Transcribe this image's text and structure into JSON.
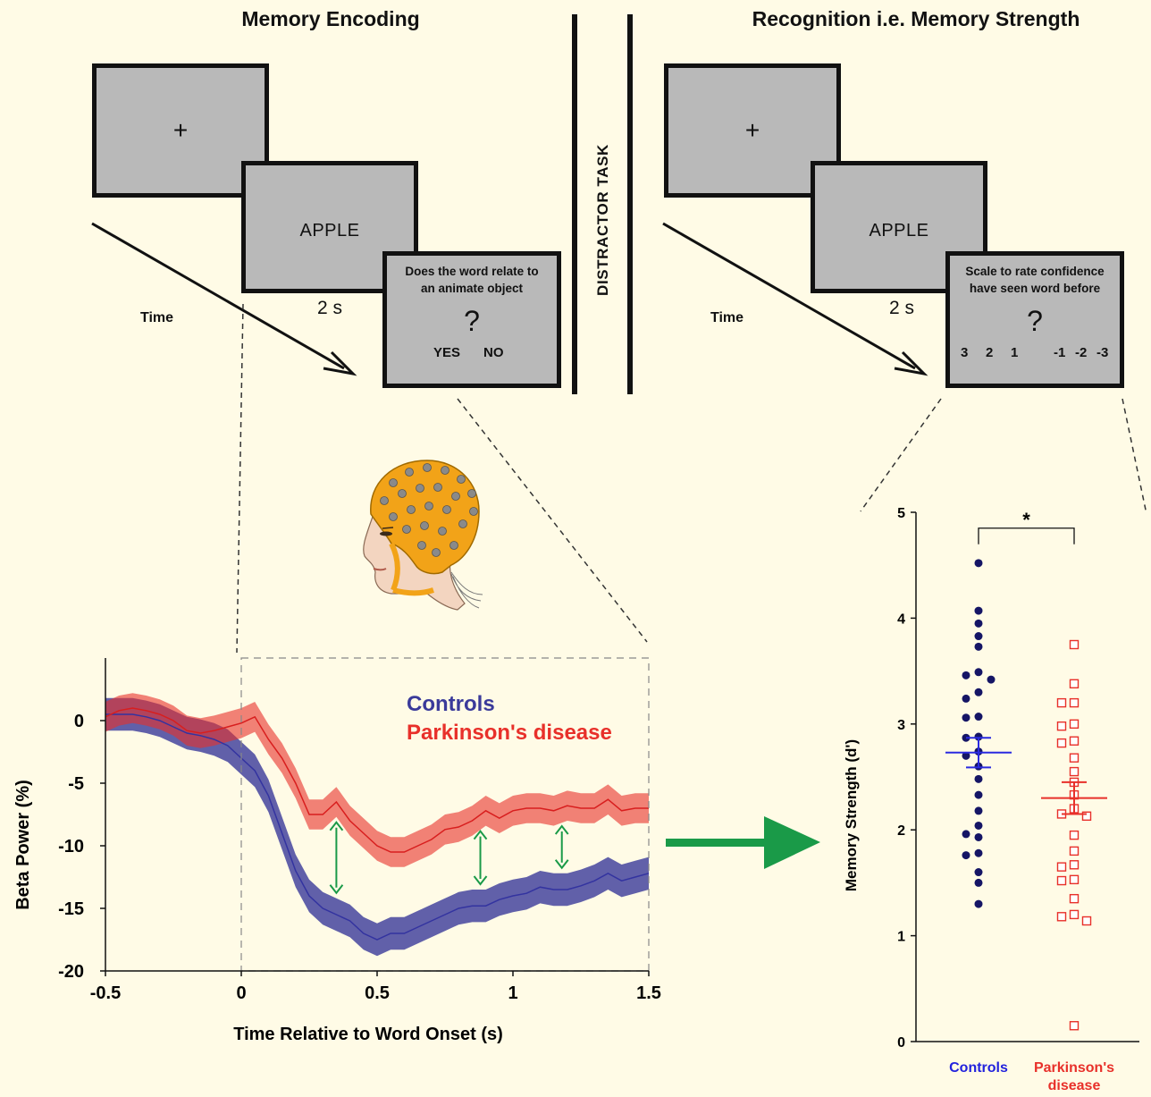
{
  "encoding": {
    "title": "Memory Encoding",
    "fixation": "+",
    "word": "APPLE",
    "duration": "2 s",
    "time_label": "Time",
    "question_line1": "Does the word relate to",
    "question_line2": "an animate object",
    "question_mark": "?",
    "response_yes": "YES",
    "response_no": "NO"
  },
  "distractor": {
    "label": "DISTRACTOR TASK"
  },
  "recognition": {
    "title": "Recognition i.e. Memory Strength",
    "fixation": "+",
    "word": "APPLE",
    "duration": "2 s",
    "time_label": "Time",
    "question_line1": "Scale to rate confidence",
    "question_line2": "have seen word before",
    "question_mark": "?",
    "scale": [
      "3",
      "2",
      "1",
      "-1",
      "-2",
      "-3"
    ]
  },
  "colors": {
    "controls": "#3a3a9a",
    "parkinsons": "#e8302a",
    "arrow_green": "#1a9a48",
    "background": "#fffbe6"
  },
  "chart_data": [
    {
      "type": "line",
      "xlabel": "Time Relative to Word Onset (s)",
      "ylabel": "Beta Power (%)",
      "xlim": [
        -0.5,
        1.5
      ],
      "ylim": [
        -20,
        5
      ],
      "xticks": [
        "-0.5",
        "0",
        "0.5",
        "1",
        "1.5"
      ],
      "yticks": [
        "0",
        "-5",
        "-10",
        "-15",
        "-20"
      ],
      "legend": [
        "Controls",
        "Parkinson's disease"
      ],
      "x": [
        -0.5,
        -0.45,
        -0.4,
        -0.35,
        -0.3,
        -0.25,
        -0.2,
        -0.15,
        -0.1,
        -0.05,
        0,
        0.05,
        0.1,
        0.15,
        0.2,
        0.25,
        0.3,
        0.35,
        0.4,
        0.45,
        0.5,
        0.55,
        0.6,
        0.65,
        0.7,
        0.75,
        0.8,
        0.85,
        0.9,
        0.95,
        1.0,
        1.05,
        1.1,
        1.15,
        1.2,
        1.25,
        1.3,
        1.35,
        1.4,
        1.45,
        1.5
      ],
      "series": [
        {
          "name": "Controls",
          "color": "#3a3a9a",
          "values": [
            0.5,
            0.5,
            0.5,
            0.3,
            0,
            -0.5,
            -1,
            -1.2,
            -1.5,
            -2,
            -3,
            -4,
            -6,
            -9,
            -12,
            -14,
            -15,
            -15.5,
            -16,
            -17,
            -17.5,
            -17,
            -17,
            -16.5,
            -16,
            -15.5,
            -15,
            -14.8,
            -14.8,
            -14.3,
            -14,
            -13.8,
            -13.3,
            -13.5,
            -13.5,
            -13.2,
            -12.8,
            -12.2,
            -12.8,
            -12.5,
            -12.2
          ],
          "band": 1.3
        },
        {
          "name": "Parkinson's disease",
          "color": "#e8302a",
          "values": [
            0.3,
            0.8,
            1,
            0.8,
            0.5,
            0,
            -0.8,
            -1,
            -0.8,
            -0.5,
            -0.2,
            0.3,
            -1.5,
            -3,
            -5,
            -7.5,
            -7.5,
            -6.5,
            -8,
            -9,
            -10,
            -10.5,
            -10.5,
            -10,
            -9.5,
            -8.7,
            -8.5,
            -8,
            -7.2,
            -7.8,
            -7.2,
            -7,
            -7,
            -7.2,
            -6.8,
            -7,
            -7,
            -6.3,
            -7.2,
            -7,
            -7
          ],
          "band": 1.2
        }
      ],
      "annotations": {
        "double_arrows_x": [
          0.35,
          0.88,
          1.18
        ],
        "highlight_window": [
          0,
          1.5
        ]
      }
    },
    {
      "type": "scatter",
      "ylabel": "Memory Strength (d')",
      "ylim": [
        0,
        5
      ],
      "yticks": [
        "0",
        "1",
        "2",
        "3",
        "4",
        "5"
      ],
      "categories": [
        "Controls",
        "Parkinson's disease"
      ],
      "category_label_lines": [
        [
          "Controls"
        ],
        [
          "Parkinson's",
          "disease"
        ]
      ],
      "significance": "*",
      "series": [
        {
          "name": "Controls",
          "color": "#151565",
          "marker": "filled-circle",
          "mean": 2.73,
          "sem": [
            2.59,
            2.87
          ],
          "values": [
            4.52,
            4.07,
            3.95,
            3.83,
            3.73,
            3.49,
            3.46,
            3.42,
            3.3,
            3.24,
            3.07,
            3.06,
            2.88,
            2.87,
            2.74,
            2.7,
            2.6,
            2.48,
            2.33,
            2.18,
            2.04,
            1.96,
            1.93,
            1.78,
            1.76,
            1.6,
            1.5,
            1.3
          ]
        },
        {
          "name": "Parkinson's disease",
          "color": "#e8302a",
          "marker": "open-square",
          "mean": 2.3,
          "sem": [
            2.15,
            2.45
          ],
          "values": [
            3.75,
            3.38,
            3.2,
            3.2,
            3.0,
            2.98,
            2.84,
            2.82,
            2.68,
            2.55,
            2.45,
            2.33,
            2.2,
            2.15,
            2.13,
            1.95,
            1.8,
            1.67,
            1.65,
            1.53,
            1.52,
            1.35,
            1.2,
            1.18,
            1.14,
            0.15
          ]
        }
      ]
    }
  ]
}
